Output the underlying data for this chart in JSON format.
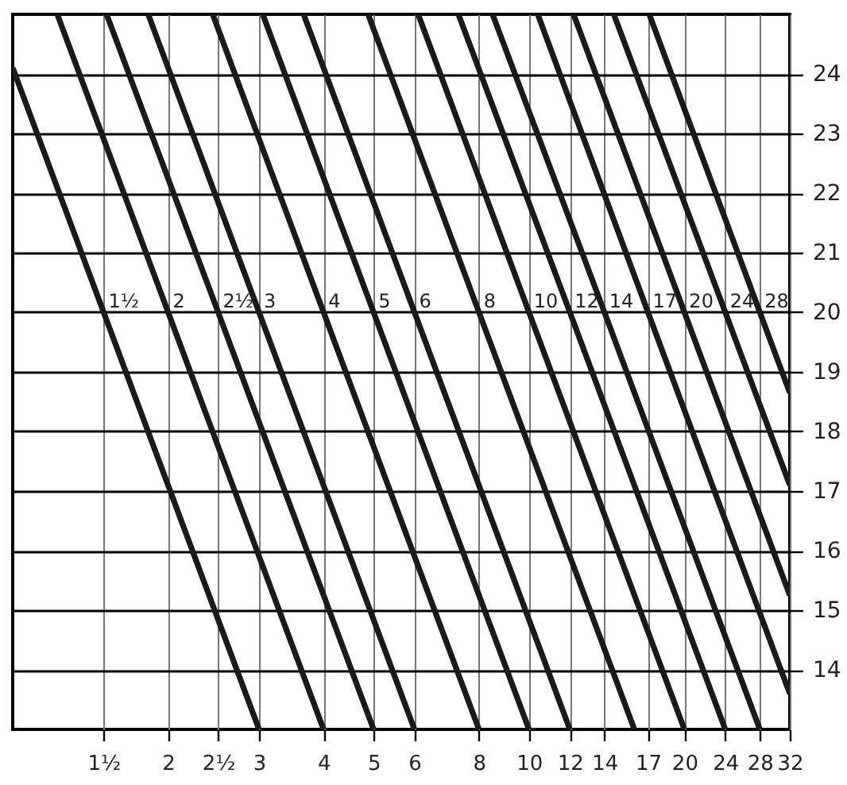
{
  "chart_data": {
    "type": "line",
    "log": "x",
    "grid": true,
    "marker": "none",
    "line_style": "solid",
    "xlim": [
      1,
      32
    ],
    "ylim": [
      13,
      25
    ],
    "xticks": [
      {
        "value": 1.5,
        "label": "1½"
      },
      2,
      {
        "value": 2.5,
        "label": "2½"
      },
      3,
      4,
      5,
      6,
      8,
      10,
      12,
      14,
      17,
      20,
      24,
      28,
      32
    ],
    "yticks": [
      14,
      15,
      16,
      17,
      18,
      19,
      20,
      21,
      22,
      23,
      24
    ],
    "series": [
      {
        "name": "1½",
        "color": "#1a1a1a",
        "x": [
          1,
          1.5,
          3
        ],
        "values": [
          24.1,
          20,
          13
        ]
      },
      {
        "name": "2",
        "color": "#1a1a1a",
        "x": [
          1.22,
          2,
          4
        ],
        "values": [
          25,
          20,
          13
        ]
      },
      {
        "name": "2½",
        "color": "#1a1a1a",
        "x": [
          1.52,
          2.5,
          5
        ],
        "values": [
          25,
          20,
          13
        ]
      },
      {
        "name": "3",
        "color": "#1a1a1a",
        "x": [
          1.83,
          3,
          6
        ],
        "values": [
          25,
          20,
          13
        ]
      },
      {
        "name": "4",
        "color": "#1a1a1a",
        "x": [
          2.44,
          4,
          8
        ],
        "values": [
          25,
          20,
          13
        ]
      },
      {
        "name": "5",
        "color": "#1a1a1a",
        "x": [
          3.05,
          5,
          10
        ],
        "values": [
          25,
          20,
          13
        ]
      },
      {
        "name": "6",
        "color": "#1a1a1a",
        "x": [
          3.66,
          6,
          12
        ],
        "values": [
          25,
          20,
          13
        ]
      },
      {
        "name": "8",
        "color": "#1a1a1a",
        "x": [
          4.88,
          8,
          16
        ],
        "values": [
          25,
          20,
          13
        ]
      },
      {
        "name": "10",
        "color": "#1a1a1a",
        "x": [
          6.1,
          10,
          20
        ],
        "values": [
          25,
          20,
          13
        ]
      },
      {
        "name": "12",
        "color": "#1a1a1a",
        "x": [
          7.3,
          12,
          24
        ],
        "values": [
          25,
          20,
          13
        ]
      },
      {
        "name": "14",
        "color": "#1a1a1a",
        "x": [
          8.5,
          14,
          28
        ],
        "values": [
          25,
          20,
          13
        ]
      },
      {
        "name": "17",
        "color": "#1a1a1a",
        "x": [
          10.4,
          17,
          32
        ],
        "values": [
          25,
          20,
          13.6
        ]
      },
      {
        "name": "20",
        "color": "#1a1a1a",
        "x": [
          12.2,
          20,
          32
        ],
        "values": [
          25,
          20,
          15.25
        ]
      },
      {
        "name": "24",
        "color": "#1a1a1a",
        "x": [
          14.6,
          24,
          32
        ],
        "values": [
          25,
          20,
          17.1
        ]
      },
      {
        "name": "28",
        "color": "#1a1a1a",
        "x": [
          17.1,
          28,
          32
        ],
        "values": [
          25,
          20,
          18.65
        ]
      }
    ]
  }
}
